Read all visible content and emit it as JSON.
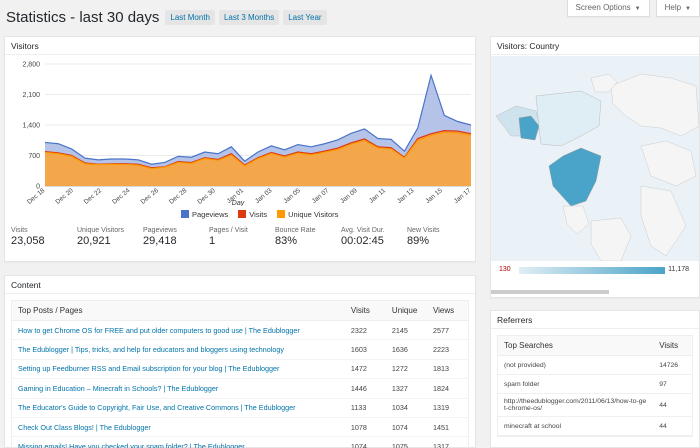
{
  "top_tabs": {
    "screen_options": "Screen Options",
    "help": "Help"
  },
  "title": "Statistics - last 30 days",
  "ranges": [
    "Last Month",
    "Last 3 Months",
    "Last Year"
  ],
  "visitors_panel": {
    "title": "Visitors",
    "stats": [
      {
        "label": "Visits",
        "value": "23,058"
      },
      {
        "label": "Unique Visitors",
        "value": "20,921"
      },
      {
        "label": "Pageviews",
        "value": "29,418"
      },
      {
        "label": "Pages / Visit",
        "value": "1"
      },
      {
        "label": "Bounce Rate",
        "value": "83%"
      },
      {
        "label": "Avg. Visit Dur.",
        "value": "00:02:45"
      },
      {
        "label": "New Visits",
        "value": "89%"
      }
    ]
  },
  "chart_data": {
    "type": "area",
    "xlabel": "Day",
    "ylim": [
      0,
      2800
    ],
    "yticks": [
      "0",
      "700",
      "1,400",
      "2,100",
      "2,800"
    ],
    "xticks": [
      "Dec 18",
      "Dec 20",
      "Dec 22",
      "Dec 24",
      "Dec 26",
      "Dec 28",
      "Dec 30",
      "Jan 01",
      "Jan 03",
      "Jan 05",
      "Jan 07",
      "Jan 09",
      "Jan 11",
      "Jan 13",
      "Jan 15",
      "Jan 17"
    ],
    "series": [
      {
        "name": "Pageviews",
        "color": "#4a74c9",
        "values": [
          1000,
          970,
          850,
          640,
          600,
          620,
          620,
          600,
          500,
          540,
          680,
          660,
          780,
          740,
          900,
          570,
          780,
          920,
          830,
          950,
          900,
          970,
          1060,
          1210,
          1310,
          1090,
          1070,
          800,
          1330,
          2540,
          1620,
          1480,
          1400
        ]
      },
      {
        "name": "Visits",
        "color": "#dc3912",
        "values": [
          790,
          760,
          700,
          530,
          500,
          510,
          510,
          500,
          420,
          440,
          560,
          540,
          650,
          610,
          740,
          480,
          650,
          770,
          690,
          780,
          740,
          800,
          870,
          990,
          1080,
          900,
          880,
          660,
          1090,
          1200,
          1270,
          1260,
          1200
        ]
      },
      {
        "name": "Unique Visitors",
        "color": "#ff9900",
        "values": [
          770,
          740,
          680,
          510,
          490,
          500,
          495,
          480,
          400,
          430,
          540,
          520,
          630,
          590,
          710,
          460,
          630,
          745,
          665,
          755,
          715,
          775,
          840,
          960,
          1045,
          875,
          850,
          640,
          1050,
          1160,
          1230,
          1220,
          1170
        ]
      }
    ]
  },
  "country_panel": {
    "title": "Visitors: Country",
    "min": "130",
    "max": "11,178"
  },
  "content_panel": {
    "title": "Content",
    "columns": [
      "Top Posts / Pages",
      "Visits",
      "Unique",
      "Views"
    ],
    "rows": [
      [
        "How to get Chrome OS for FREE and put older computers to good use | The Edublogger",
        "2322",
        "2145",
        "2577"
      ],
      [
        "The Edublogger | Tips, tricks, and help for educators and bloggers using technology",
        "1603",
        "1636",
        "2223"
      ],
      [
        "Setting up Feedburner RSS and Email subscription for your blog | The Edublogger",
        "1472",
        "1272",
        "1813"
      ],
      [
        "Gaming in Education – Minecraft in Schools? | The Edublogger",
        "1446",
        "1327",
        "1824"
      ],
      [
        "The Educator's Guide to Copyright, Fair Use, and Creative Commons | The Edublogger",
        "1133",
        "1034",
        "1319"
      ],
      [
        "Check Out Class Blogs! | The Edublogger",
        "1078",
        "1074",
        "1451"
      ],
      [
        "Missing emails! Have you checked your spam folder? | The Edublogger",
        "1074",
        "1075",
        "1317"
      ]
    ]
  },
  "referrers_panel": {
    "title": "Referrers",
    "columns": [
      "Top Searches",
      "Visits"
    ],
    "rows": [
      [
        "(not provided)",
        "14726"
      ],
      [
        "spam folder",
        "97"
      ],
      [
        "http://theedublogger.com/2011/06/13/how-to-get-chrome-os/",
        "44"
      ],
      [
        "minecraft at school",
        "44"
      ]
    ]
  }
}
